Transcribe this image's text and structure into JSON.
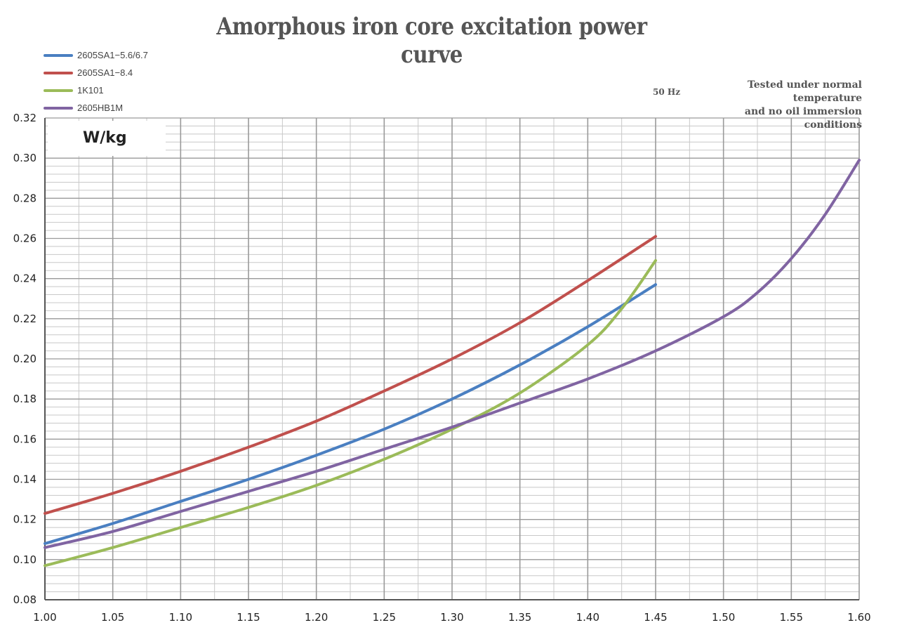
{
  "chart_data": {
    "type": "line",
    "title": "Amorphous iron core excitation power curve",
    "ylabel": "W/kg",
    "xlabel": "",
    "note_freq": "50 Hz",
    "note_lines": [
      "Tested under normal temperature",
      "and no oil immersion conditions"
    ],
    "xlim": [
      1.0,
      1.6
    ],
    "ylim": [
      0.08,
      0.32
    ],
    "x_ticks": [
      "1.00",
      "1.05",
      "1.10",
      "1.15",
      "1.20",
      "1.25",
      "1.30",
      "1.35",
      "1.40",
      "1.45",
      "1.50",
      "1.55",
      "1.60"
    ],
    "y_ticks": [
      "0.08",
      "0.10",
      "0.12",
      "0.14",
      "0.16",
      "0.18",
      "0.20",
      "0.22",
      "0.24",
      "0.26",
      "0.28",
      "0.30",
      "0.32"
    ],
    "legend_position": "top-left",
    "grid": true,
    "series": [
      {
        "name": "2605SA1−5.6/6.7",
        "color": "#4a7fc1",
        "x": [
          1.0,
          1.05,
          1.1,
          1.15,
          1.2,
          1.25,
          1.3,
          1.35,
          1.4,
          1.45
        ],
        "y": [
          0.108,
          0.118,
          0.129,
          0.14,
          0.152,
          0.165,
          0.18,
          0.197,
          0.216,
          0.237
        ]
      },
      {
        "name": "2605SA1−8.4",
        "color": "#c0504d",
        "x": [
          1.0,
          1.05,
          1.1,
          1.15,
          1.2,
          1.25,
          1.3,
          1.35,
          1.4,
          1.45
        ],
        "y": [
          0.123,
          0.133,
          0.144,
          0.156,
          0.169,
          0.184,
          0.2,
          0.218,
          0.239,
          0.261
        ]
      },
      {
        "name": "1K101",
        "color": "#9bbb59",
        "x": [
          1.0,
          1.05,
          1.1,
          1.15,
          1.2,
          1.25,
          1.3,
          1.35,
          1.4,
          1.425,
          1.45
        ],
        "y": [
          0.097,
          0.106,
          0.116,
          0.126,
          0.137,
          0.15,
          0.165,
          0.183,
          0.207,
          0.225,
          0.249
        ]
      },
      {
        "name": "2605HB1M",
        "color": "#8064a2",
        "x": [
          1.0,
          1.05,
          1.1,
          1.15,
          1.2,
          1.25,
          1.3,
          1.35,
          1.4,
          1.45,
          1.5,
          1.525,
          1.55,
          1.575,
          1.6
        ],
        "y": [
          0.106,
          0.114,
          0.124,
          0.134,
          0.144,
          0.155,
          0.166,
          0.178,
          0.19,
          0.204,
          0.221,
          0.233,
          0.25,
          0.272,
          0.299
        ]
      }
    ]
  }
}
